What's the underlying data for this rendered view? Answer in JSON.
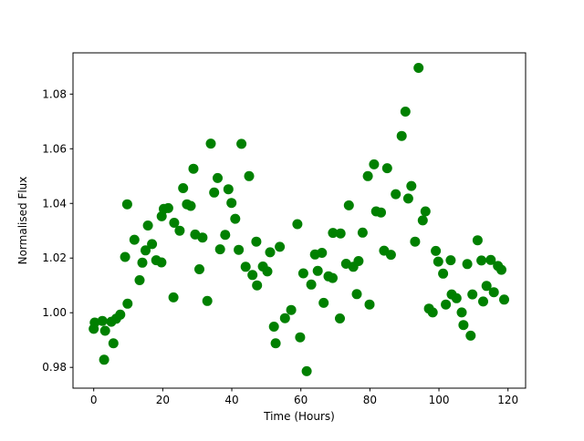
{
  "chart_data": {
    "type": "scatter",
    "title": "",
    "xlabel": "Time (Hours)",
    "ylabel": "Normalised Flux",
    "xlim": [
      -6.0,
      125.1
    ],
    "ylim": [
      0.9724,
      1.0951
    ],
    "xticks": [
      0,
      20,
      40,
      60,
      80,
      100,
      120
    ],
    "xtick_labels": [
      "0",
      "20",
      "40",
      "60",
      "80",
      "100",
      "120"
    ],
    "yticks": [
      0.98,
      1.0,
      1.02,
      1.04,
      1.06,
      1.08
    ],
    "ytick_labels": [
      "0.98",
      "1.00",
      "1.02",
      "1.04",
      "1.06",
      "1.08"
    ],
    "legend": null,
    "grid": false,
    "marker": "circle",
    "marker_color": "#008000",
    "background": "#ffffff",
    "points": [
      [
        0.0,
        0.9941
      ],
      [
        0.3,
        0.9964
      ],
      [
        2.5,
        0.997
      ],
      [
        3.0,
        0.9828
      ],
      [
        3.3,
        0.9934
      ],
      [
        5.1,
        0.9967
      ],
      [
        5.7,
        0.9888
      ],
      [
        6.5,
        0.9978
      ],
      [
        7.7,
        0.9993
      ],
      [
        9.1,
        1.0204
      ],
      [
        9.7,
        1.0397
      ],
      [
        9.8,
        1.0033
      ],
      [
        11.8,
        1.0267
      ],
      [
        13.3,
        1.0119
      ],
      [
        14.1,
        1.0183
      ],
      [
        15.0,
        1.0228
      ],
      [
        15.7,
        1.0319
      ],
      [
        16.9,
        1.0251
      ],
      [
        18.1,
        1.0192
      ],
      [
        19.6,
        1.0184
      ],
      [
        19.7,
        1.0353
      ],
      [
        20.3,
        1.038
      ],
      [
        21.6,
        1.0383
      ],
      [
        23.1,
        1.0056
      ],
      [
        23.3,
        1.0329
      ],
      [
        24.9,
        1.03
      ],
      [
        25.9,
        1.0456
      ],
      [
        27.0,
        1.0397
      ],
      [
        28.1,
        1.0391
      ],
      [
        28.9,
        1.0527
      ],
      [
        29.4,
        1.0286
      ],
      [
        30.6,
        1.0159
      ],
      [
        31.5,
        1.0275
      ],
      [
        32.9,
        1.0043
      ],
      [
        33.9,
        1.0619
      ],
      [
        34.9,
        1.044
      ],
      [
        35.9,
        1.0493
      ],
      [
        36.6,
        1.0232
      ],
      [
        38.1,
        1.0285
      ],
      [
        39.0,
        1.0452
      ],
      [
        39.9,
        1.0402
      ],
      [
        41.0,
        1.0344
      ],
      [
        42.0,
        1.023
      ],
      [
        42.8,
        1.0618
      ],
      [
        44.0,
        1.0168
      ],
      [
        45.0,
        1.05
      ],
      [
        46.0,
        1.0138
      ],
      [
        47.1,
        1.026
      ],
      [
        47.3,
        1.01
      ],
      [
        49.0,
        1.0169
      ],
      [
        50.3,
        1.0151
      ],
      [
        51.1,
        1.0221
      ],
      [
        52.2,
        0.9949
      ],
      [
        52.7,
        0.9888
      ],
      [
        53.9,
        1.0241
      ],
      [
        55.4,
        0.998
      ],
      [
        57.2,
        1.001
      ],
      [
        59.0,
        1.0324
      ],
      [
        59.8,
        0.991
      ],
      [
        60.7,
        1.0144
      ],
      [
        61.7,
        0.9786
      ],
      [
        63.0,
        1.0103
      ],
      [
        64.1,
        1.0213
      ],
      [
        64.9,
        1.0153
      ],
      [
        66.1,
        1.0219
      ],
      [
        66.6,
        1.0036
      ],
      [
        68.0,
        1.0133
      ],
      [
        69.2,
        1.0127
      ],
      [
        69.3,
        1.0292
      ],
      [
        71.3,
        0.9979
      ],
      [
        71.5,
        1.029
      ],
      [
        73.1,
        1.0179
      ],
      [
        73.9,
        1.0393
      ],
      [
        75.2,
        1.0168
      ],
      [
        76.2,
        1.0068
      ],
      [
        76.7,
        1.0189
      ],
      [
        77.9,
        1.0293
      ],
      [
        79.4,
        1.05
      ],
      [
        79.9,
        1.003
      ],
      [
        81.2,
        1.0543
      ],
      [
        81.8,
        1.0371
      ],
      [
        83.2,
        1.0367
      ],
      [
        84.1,
        1.0227
      ],
      [
        85.0,
        1.0529
      ],
      [
        86.1,
        1.0212
      ],
      [
        87.5,
        1.0434
      ],
      [
        89.2,
        1.0647
      ],
      [
        90.3,
        1.0736
      ],
      [
        91.1,
        1.0418
      ],
      [
        92.0,
        1.0464
      ],
      [
        93.1,
        1.026
      ],
      [
        94.1,
        1.0896
      ],
      [
        95.3,
        1.0338
      ],
      [
        96.1,
        1.0371
      ],
      [
        97.1,
        1.0015
      ],
      [
        98.2,
        1.0001
      ],
      [
        99.1,
        1.0226
      ],
      [
        99.8,
        1.0187
      ],
      [
        101.2,
        1.0143
      ],
      [
        102.0,
        1.003
      ],
      [
        103.4,
        1.0192
      ],
      [
        103.7,
        1.0067
      ],
      [
        105.1,
        1.0053
      ],
      [
        106.6,
        1.0001
      ],
      [
        107.1,
        0.9955
      ],
      [
        108.2,
        1.0178
      ],
      [
        109.2,
        0.9916
      ],
      [
        109.7,
        1.0067
      ],
      [
        111.2,
        1.0265
      ],
      [
        112.3,
        1.0191
      ],
      [
        112.8,
        1.0041
      ],
      [
        113.8,
        1.0098
      ],
      [
        115.0,
        1.0193
      ],
      [
        115.9,
        1.0075
      ],
      [
        117.1,
        1.0171
      ],
      [
        118.1,
        1.0157
      ],
      [
        118.9,
        1.0048
      ]
    ]
  }
}
